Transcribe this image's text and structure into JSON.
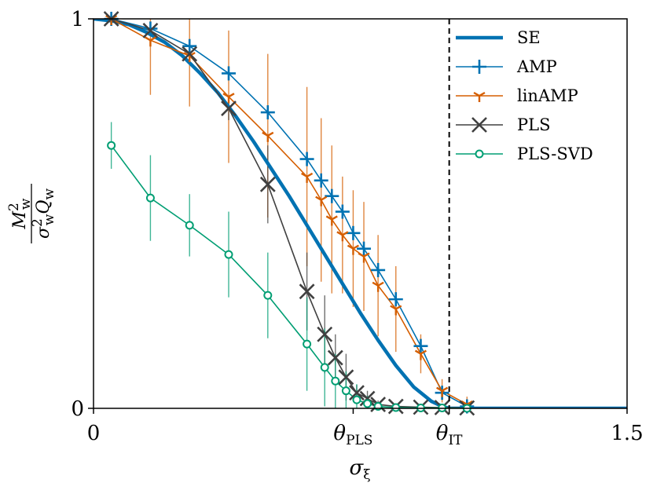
{
  "chart_data": {
    "type": "line",
    "xlabel": {
      "base": "σ",
      "sub": "ξ"
    },
    "ylabel": {
      "top_base": "M",
      "top_sub": "w",
      "top_sup": "2",
      "bottom_base1": "σ",
      "bottom_sub1": "w",
      "bottom_sup1": "2",
      "bottom_base2": "Q",
      "bottom_sub2": "w"
    },
    "xlim": [
      0,
      1.5
    ],
    "ylim": [
      0,
      1
    ],
    "xticks": [
      {
        "value": 0,
        "label": "0"
      },
      {
        "value": 1.5,
        "label": "1.5"
      }
    ],
    "xticks_special": [
      {
        "value": 0.73,
        "base": "θ",
        "sub": "PLS"
      },
      {
        "value": 1.0,
        "base": "θ",
        "sub": "IT"
      }
    ],
    "yticks": [
      {
        "value": 0,
        "label": "0"
      },
      {
        "value": 1,
        "label": "1"
      }
    ],
    "vline": {
      "x": 1.0,
      "style": "dashed",
      "color": "#000000"
    },
    "legend_position": "top-right",
    "series": [
      {
        "name": "SE",
        "color": "#0072b2",
        "marker": "none",
        "x": [
          0,
          0.05,
          0.1,
          0.15,
          0.2,
          0.25,
          0.3,
          0.35,
          0.4,
          0.45,
          0.5,
          0.55,
          0.6,
          0.65,
          0.7,
          0.75,
          0.8,
          0.85,
          0.9,
          0.95,
          0.98,
          1.0,
          1.01,
          1.05,
          1.1,
          1.2,
          1.3,
          1.4,
          1.5
        ],
        "y": [
          1.0,
          0.995,
          0.985,
          0.965,
          0.94,
          0.905,
          0.86,
          0.81,
          0.75,
          0.685,
          0.615,
          0.545,
          0.47,
          0.395,
          0.32,
          0.245,
          0.175,
          0.11,
          0.055,
          0.018,
          0.005,
          0.0,
          0.0,
          0.0,
          0.0,
          0.0,
          0.0,
          0.0,
          0.0
        ]
      },
      {
        "name": "AMP",
        "color": "#0072b2",
        "marker": "plus",
        "x": [
          0.05,
          0.16,
          0.27,
          0.38,
          0.49,
          0.6,
          0.64,
          0.67,
          0.7,
          0.73,
          0.76,
          0.8,
          0.85,
          0.92,
          0.98,
          1.05
        ],
        "y": [
          1.0,
          0.975,
          0.93,
          0.86,
          0.76,
          0.64,
          0.585,
          0.545,
          0.505,
          0.45,
          0.41,
          0.355,
          0.28,
          0.16,
          0.04,
          0.005
        ],
        "err": [
          0.0,
          0.0,
          0.0,
          0.0,
          0.0,
          0.0,
          0.0,
          0.0,
          0.0,
          0.0,
          0.0,
          0.0,
          0.0,
          0.0,
          0.0,
          0.0
        ]
      },
      {
        "name": "linAMP",
        "color": "#d55e00",
        "marker": "tri_down",
        "x": [
          0.05,
          0.16,
          0.27,
          0.38,
          0.49,
          0.6,
          0.64,
          0.67,
          0.7,
          0.73,
          0.76,
          0.8,
          0.85,
          0.92,
          0.98,
          1.05
        ],
        "y": [
          1.0,
          0.945,
          0.905,
          0.8,
          0.7,
          0.595,
          0.535,
          0.485,
          0.445,
          0.41,
          0.39,
          0.315,
          0.255,
          0.14,
          0.045,
          0.01
        ],
        "err": [
          0.0,
          0.14,
          0.13,
          0.17,
          0.21,
          0.23,
          0.21,
          0.19,
          0.15,
          0.15,
          0.14,
          0.13,
          0.11,
          0.05,
          0.03,
          0.02
        ]
      },
      {
        "name": "PLS",
        "color": "#404040",
        "marker": "x",
        "x": [
          0.05,
          0.16,
          0.27,
          0.38,
          0.49,
          0.6,
          0.65,
          0.68,
          0.71,
          0.74,
          0.77,
          0.8,
          0.85,
          0.92,
          0.98,
          1.05
        ],
        "y": [
          1.0,
          0.97,
          0.91,
          0.77,
          0.575,
          0.3,
          0.19,
          0.13,
          0.08,
          0.04,
          0.025,
          0.01,
          0.005,
          0.003,
          0.002,
          0.001
        ],
        "err": [
          0.0,
          0.0,
          0.0,
          0.03,
          0.1,
          0.1,
          0.1,
          0.06,
          0.06,
          0.02,
          0.02,
          0.01,
          0.0,
          0.0,
          0.0,
          0.0
        ]
      },
      {
        "name": "PLS-SVD",
        "color": "#009e73",
        "marker": "circle",
        "x": [
          0.05,
          0.16,
          0.27,
          0.38,
          0.49,
          0.6,
          0.65,
          0.68,
          0.71,
          0.74,
          0.77,
          0.8,
          0.85,
          0.92,
          0.98,
          1.05
        ],
        "y": [
          0.675,
          0.54,
          0.47,
          0.395,
          0.29,
          0.165,
          0.105,
          0.07,
          0.045,
          0.022,
          0.012,
          0.005,
          0.002,
          0.001,
          0.001,
          0.0
        ],
        "err": [
          0.06,
          0.11,
          0.08,
          0.11,
          0.11,
          0.12,
          0.1,
          0.07,
          0.05,
          0.04,
          0.02,
          0.01,
          0.0,
          0.0,
          0.0,
          0.0
        ]
      }
    ]
  }
}
